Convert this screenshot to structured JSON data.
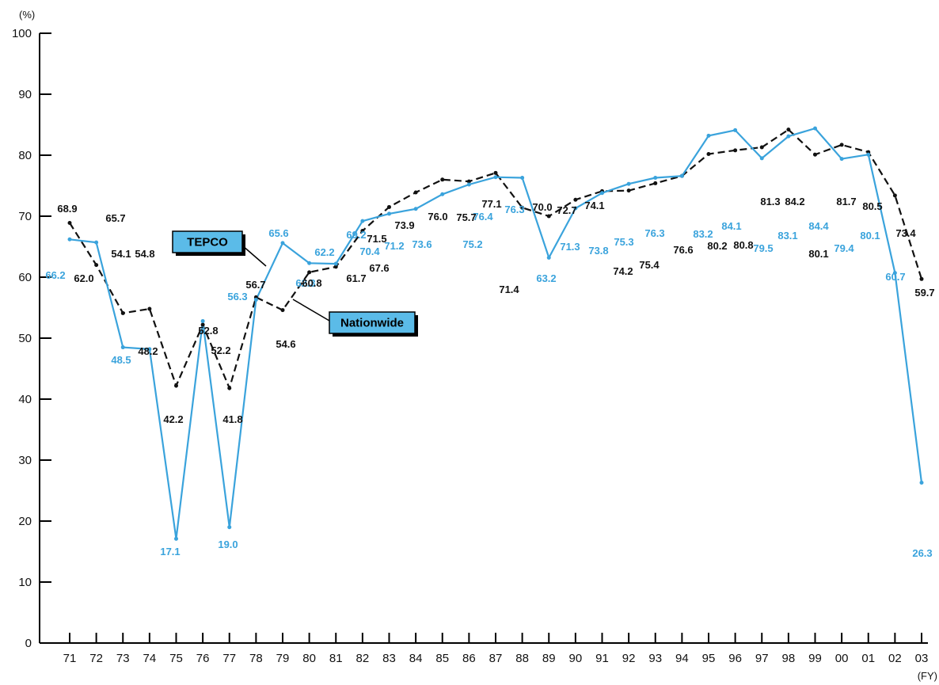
{
  "chart_data": {
    "type": "line",
    "y_unit": "(%)",
    "x_unit": "(FY)",
    "categories": [
      "71",
      "72",
      "73",
      "74",
      "75",
      "76",
      "77",
      "78",
      "79",
      "80",
      "81",
      "82",
      "83",
      "84",
      "85",
      "86",
      "87",
      "88",
      "89",
      "90",
      "91",
      "92",
      "93",
      "94",
      "95",
      "96",
      "97",
      "98",
      "99",
      "00",
      "01",
      "02",
      "03"
    ],
    "ylim": [
      0,
      100
    ],
    "yticks": [
      0,
      10,
      20,
      30,
      40,
      50,
      60,
      70,
      80,
      90,
      100
    ],
    "grid": false,
    "series": [
      {
        "name": "TEPCO",
        "color": "#3aa3dc",
        "style": "solid",
        "values": [
          66.2,
          65.7,
          48.5,
          48.2,
          17.1,
          52.8,
          19.0,
          56.3,
          65.6,
          62.3,
          62.2,
          69.2,
          70.4,
          71.2,
          73.6,
          75.2,
          76.4,
          76.3,
          63.2,
          71.3,
          73.8,
          75.3,
          76.3,
          76.6,
          83.2,
          84.1,
          79.5,
          83.1,
          84.4,
          79.4,
          80.1,
          60.7,
          26.3
        ],
        "labels": [
          "66.2",
          "",
          "48.5",
          "",
          "17.1",
          "",
          "19.0",
          "56.3",
          "65.6",
          "62.3",
          "62.2",
          "69.2",
          "70.4",
          "71.2",
          "73.6",
          "75.2",
          "76.4",
          "76.3",
          "63.2",
          "71.3",
          "73.8",
          "75.3",
          "76.3",
          "",
          "83.2",
          "84.1",
          "79.5",
          "83.1",
          "84.4",
          "79.4",
          "80.1",
          "60.7",
          "26.3"
        ]
      },
      {
        "name": "Nationwide",
        "color": "#111111",
        "style": "dashed",
        "values": [
          68.9,
          62.0,
          54.1,
          54.8,
          42.2,
          52.2,
          41.8,
          56.7,
          54.6,
          60.8,
          61.7,
          67.6,
          71.5,
          73.9,
          76.0,
          75.7,
          77.1,
          71.4,
          70.0,
          72.7,
          74.1,
          74.2,
          75.4,
          76.6,
          80.2,
          80.8,
          81.3,
          84.2,
          80.1,
          81.7,
          80.5,
          73.4,
          59.7
        ],
        "labels": [
          "68.9",
          "62.0",
          "54.1",
          "54.8",
          "42.2",
          "52.2",
          "41.8",
          "56.7",
          "54.6",
          "60.8",
          "61.7",
          "67.6",
          "71.5",
          "73.9",
          "76.0",
          "75.7",
          "77.1",
          "71.4",
          "70.0",
          "72.7",
          "74.1",
          "74.2",
          "75.4",
          "76.6",
          "80.2",
          "80.8",
          "81.3",
          "84.2",
          "80.1",
          "81.7",
          "80.5",
          "73.4",
          "59.7"
        ],
        "extra_labels": [
          "65.7",
          "48.2",
          "52.8"
        ]
      }
    ],
    "callouts": [
      {
        "text": "TEPCO",
        "fill": "#5bbbe8"
      },
      {
        "text": "Nationwide",
        "fill": "#5bbbe8"
      }
    ]
  }
}
